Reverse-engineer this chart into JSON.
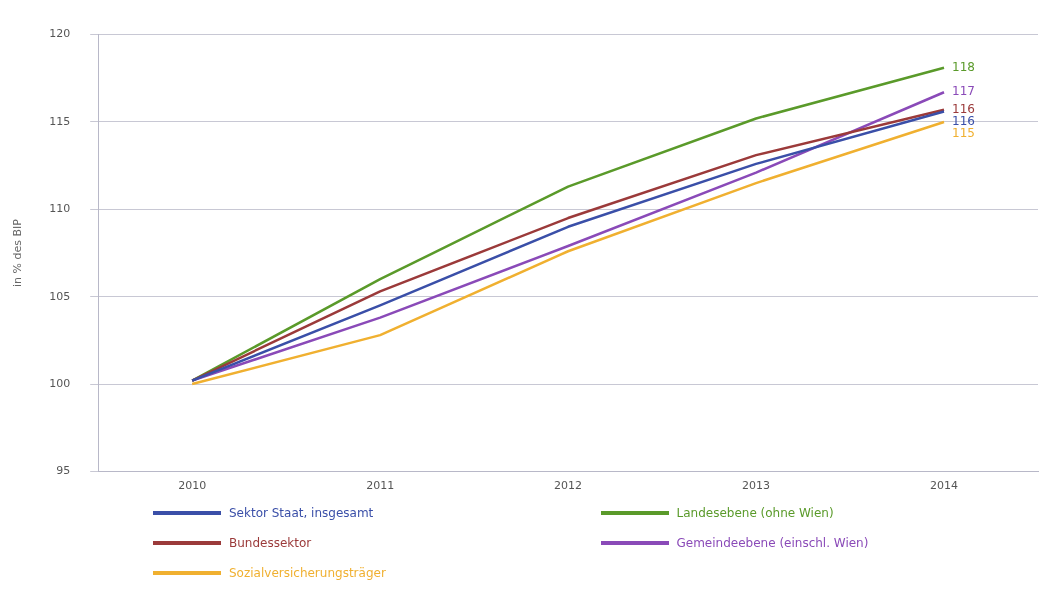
{
  "chart_data": {
    "type": "line",
    "ylabel": "in % des BIP",
    "categories": [
      "2010",
      "2011",
      "2012",
      "2013",
      "2014"
    ],
    "ylim": [
      95,
      120
    ],
    "yticks": [
      95,
      100,
      105,
      110,
      115,
      120
    ],
    "grid": "y",
    "legend": "bottom",
    "series": [
      {
        "name": "Sektor Staat, insgesamt",
        "color": "#3a4fa8",
        "values": [
          100.2,
          104.5,
          109.0,
          112.6,
          115.6
        ],
        "value_labels": [
          null,
          null,
          null,
          null,
          "116"
        ]
      },
      {
        "name": "Bundessektor",
        "color": "#9b3a3a",
        "values": [
          100.2,
          105.3,
          109.5,
          113.1,
          115.7
        ],
        "value_labels": [
          null,
          null,
          null,
          null,
          "116"
        ]
      },
      {
        "name": "Sozialversicherungsträger",
        "color": "#f0b030",
        "values": [
          100.0,
          102.8,
          107.6,
          111.5,
          115.0
        ],
        "value_labels": [
          null,
          null,
          null,
          null,
          "115"
        ]
      },
      {
        "name": "Landesebene (ohne Wien)",
        "color": "#5a9a2a",
        "values": [
          100.2,
          106.0,
          111.3,
          115.2,
          118.1
        ],
        "value_labels": [
          null,
          null,
          null,
          null,
          "118"
        ]
      },
      {
        "name": "Gemeindeebene (einschl. Wien)",
        "color": "#8a4ab8",
        "values": [
          100.2,
          103.8,
          107.9,
          112.1,
          116.7
        ],
        "value_labels": [
          null,
          null,
          null,
          null,
          "117"
        ]
      }
    ]
  }
}
